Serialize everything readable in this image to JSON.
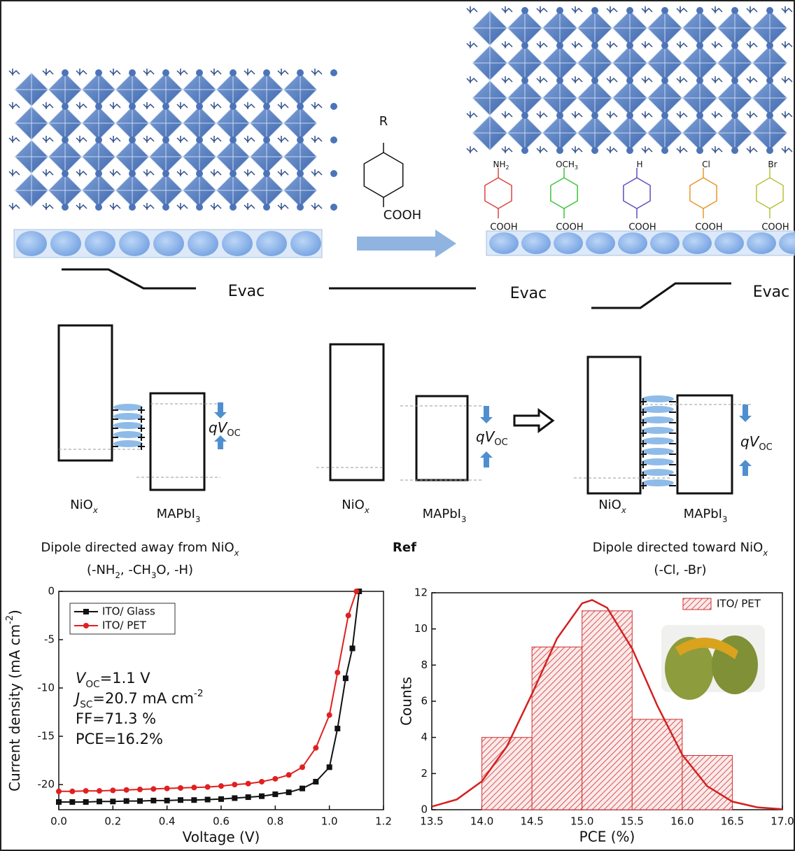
{
  "diagram": {
    "molecule": {
      "r": "R",
      "acid": "COOH"
    },
    "substituents": [
      {
        "label": [
          {
            "t": "NH"
          },
          {
            "t": "2",
            "sub": true
          }
        ],
        "acid": "COOH",
        "color": "#d9463f"
      },
      {
        "label": [
          {
            "t": "OCH"
          },
          {
            "t": "3",
            "sub": true
          }
        ],
        "acid": "COOH",
        "color": "#3cc43c"
      },
      {
        "label": [
          {
            "t": "H"
          }
        ],
        "acid": "COOH",
        "color": "#5b4fc4"
      },
      {
        "label": [
          {
            "t": "Cl"
          }
        ],
        "acid": "COOH",
        "color": "#e8962c"
      },
      {
        "label": [
          {
            "t": "Br"
          }
        ],
        "acid": "COOH",
        "color": "#b8c23a"
      }
    ],
    "panels": [
      {
        "evac": "Evac",
        "nio": [
          {
            "t": "NiO"
          },
          {
            "t": "x",
            "sub": true,
            "i": true
          }
        ],
        "mapbi": [
          {
            "t": "MAPbI"
          },
          {
            "t": "3",
            "sub": true
          }
        ],
        "voc": [
          {
            "t": "qV",
            "i": true
          },
          {
            "t": "OC",
            "sub": true
          }
        ],
        "caption": [
          [
            {
              "t": "Dipole directed away from NiO"
            },
            {
              "t": "x",
              "sub": true,
              "i": true
            }
          ],
          [
            {
              "t": "(-NH"
            },
            {
              "t": "2",
              "sub": true
            },
            {
              "t": ", -CH"
            },
            {
              "t": "3",
              "sub": true
            },
            {
              "t": "O, -H)"
            }
          ]
        ]
      },
      {
        "evac": "Evac",
        "nio": [
          {
            "t": "NiO"
          },
          {
            "t": "x",
            "sub": true,
            "i": true
          }
        ],
        "mapbi": [
          {
            "t": "MAPbI"
          },
          {
            "t": "3",
            "sub": true
          }
        ],
        "voc": [
          {
            "t": "qV",
            "i": true
          },
          {
            "t": "OC",
            "sub": true
          }
        ],
        "caption": [
          [
            {
              "t": "Ref",
              "b": true
            }
          ]
        ]
      },
      {
        "evac": "Evac",
        "nio": [
          {
            "t": "NiO"
          },
          {
            "t": "x",
            "sub": true,
            "i": true
          }
        ],
        "mapbi": [
          {
            "t": "MAPbI"
          },
          {
            "t": "3",
            "sub": true
          }
        ],
        "voc": [
          {
            "t": "qV",
            "i": true
          },
          {
            "t": "OC",
            "sub": true
          }
        ],
        "caption": [
          [
            {
              "t": "Dipole directed toward NiO"
            },
            {
              "t": "x",
              "sub": true,
              "i": true
            }
          ],
          [
            {
              "t": "(-Cl, -Br)"
            }
          ]
        ]
      }
    ]
  },
  "chart_data": [
    {
      "type": "line",
      "xlabel": [
        {
          "t": "Voltage (V)"
        }
      ],
      "ylabel": [
        {
          "t": "Current density (mA cm"
        },
        {
          "t": "-2",
          "sup": true
        },
        {
          "t": ")"
        }
      ],
      "xlim": [
        0,
        1.2
      ],
      "ylim": [
        -22.6,
        0
      ],
      "xticks": [
        {
          "value": 0,
          "label": "0.0"
        },
        0.2,
        0.4,
        0.6,
        0.8,
        {
          "value": 1,
          "label": "1.0"
        },
        1.2
      ],
      "yticks": [
        0,
        -5,
        -10,
        -15,
        -20
      ],
      "legend": "upper left",
      "annotations": [
        [
          {
            "t": "V",
            "i": true
          },
          {
            "t": "OC",
            "sub": true
          },
          {
            "t": "=1.1 V"
          }
        ],
        [
          {
            "t": "J",
            "i": true
          },
          {
            "t": "SC",
            "sub": true
          },
          {
            "t": "=20.7 mA cm"
          },
          {
            "t": "-2",
            "sup": true
          }
        ],
        [
          {
            "t": "FF=71.3 %"
          }
        ],
        [
          {
            "t": "PCE=16.2%"
          }
        ]
      ],
      "series": [
        {
          "name": "ITO/ Glass",
          "color": "#111111",
          "marker": "square",
          "x": [
            0,
            0.05,
            0.1,
            0.15,
            0.2,
            0.25,
            0.3,
            0.35,
            0.4,
            0.45,
            0.5,
            0.55,
            0.6,
            0.65,
            0.7,
            0.75,
            0.8,
            0.85,
            0.9,
            0.95,
            1.0,
            1.03,
            1.06,
            1.085,
            1.11
          ],
          "values": [
            -21.8,
            -21.8,
            -21.8,
            -21.75,
            -21.75,
            -21.7,
            -21.7,
            -21.65,
            -21.65,
            -21.6,
            -21.6,
            -21.55,
            -21.5,
            -21.4,
            -21.3,
            -21.2,
            -21.0,
            -20.8,
            -20.4,
            -19.7,
            -18.2,
            -14.2,
            -9,
            -5.9,
            0
          ]
        },
        {
          "name": "ITO/ PET",
          "color": "#e02020",
          "marker": "circle",
          "x": [
            0,
            0.05,
            0.1,
            0.15,
            0.2,
            0.25,
            0.3,
            0.35,
            0.4,
            0.45,
            0.5,
            0.55,
            0.6,
            0.65,
            0.7,
            0.75,
            0.8,
            0.85,
            0.9,
            0.95,
            1.0,
            1.03,
            1.07,
            1.1
          ],
          "values": [
            -20.7,
            -20.7,
            -20.65,
            -20.65,
            -20.6,
            -20.55,
            -20.5,
            -20.45,
            -20.4,
            -20.35,
            -20.3,
            -20.25,
            -20.15,
            -20.0,
            -19.9,
            -19.7,
            -19.4,
            -19.0,
            -18.2,
            -16.2,
            -12.8,
            -8.4,
            -2.5,
            0
          ]
        }
      ]
    },
    {
      "type": "histogram",
      "xlabel": "PCE (%)",
      "ylabel": "Counts",
      "xlim": [
        13.5,
        17
      ],
      "ylim": [
        0,
        12
      ],
      "xticks": [
        13.5,
        {
          "value": 14,
          "label": "14.0"
        },
        14.5,
        {
          "value": 15,
          "label": "15.0"
        },
        15.5,
        {
          "value": 16,
          "label": "16.0"
        },
        16.5,
        {
          "value": 17,
          "label": "17.0"
        }
      ],
      "yticks": [
        0,
        2,
        4,
        6,
        8,
        10,
        12
      ],
      "legend": "upper right",
      "series": [
        {
          "name": "ITO/ PET",
          "color": "#d03030",
          "bins": [
            14,
            14.5,
            15,
            15.5,
            16,
            16.5
          ],
          "values": [
            4,
            9,
            11,
            5,
            3
          ]
        }
      ],
      "fit": {
        "color": "#d42020",
        "x": [
          13.5,
          13.75,
          14,
          14.25,
          14.5,
          14.75,
          15,
          15.1,
          15.25,
          15.5,
          15.75,
          16,
          16.25,
          16.5,
          16.75,
          17
        ],
        "values": [
          0.17,
          0.57,
          1.57,
          3.51,
          6.4,
          9.47,
          11.41,
          11.6,
          11.17,
          8.91,
          5.77,
          3.04,
          1.3,
          0.45,
          0.13,
          0.03
        ]
      }
    }
  ]
}
